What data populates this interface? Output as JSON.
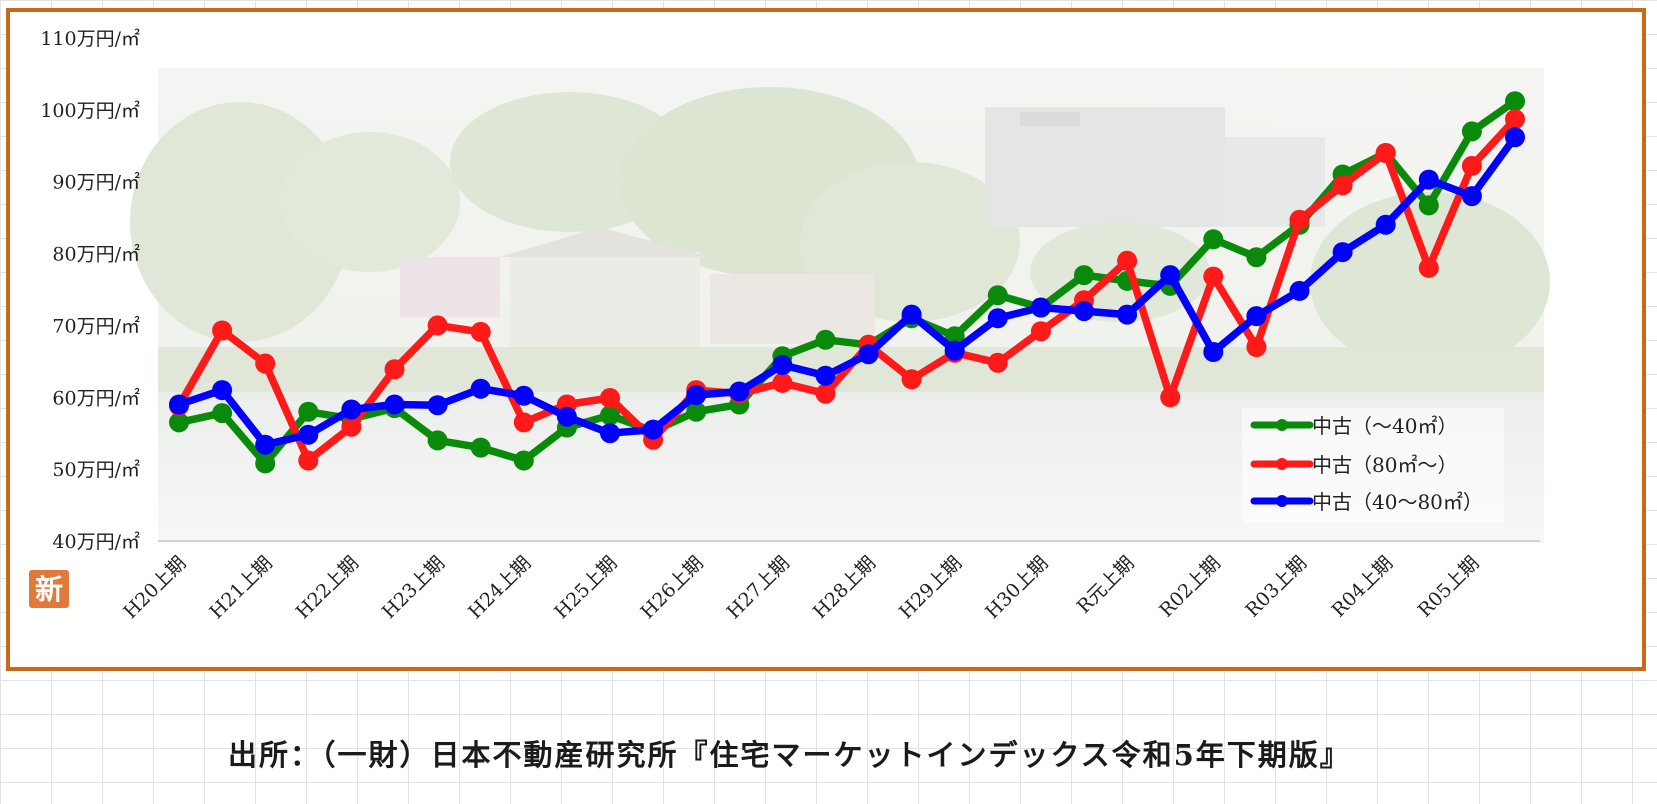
{
  "chart_data": {
    "type": "line",
    "title": "",
    "xlabel": "",
    "ylabel": "",
    "y_unit_suffix": "万円/㎡",
    "ylim": [
      40,
      110
    ],
    "yticks": [
      40,
      50,
      60,
      70,
      80,
      90,
      100,
      110
    ],
    "ytick_labels": [
      "40万円/㎡",
      "50万円/㎡",
      "60万円/㎡",
      "70万円/㎡",
      "80万円/㎡",
      "90万円/㎡",
      "100万円/㎡",
      "110万円/㎡"
    ],
    "grid": false,
    "legend_position": "bottom-right",
    "x_tick_labels": [
      "H20上期",
      "H21上期",
      "H22上期",
      "H23上期",
      "H24上期",
      "H25上期",
      "H26上期",
      "H27上期",
      "H28上期",
      "H29上期",
      "H30上期",
      "R元上期",
      "R02上期",
      "R03上期",
      "R04上期",
      "R05上期"
    ],
    "periods": 32,
    "series": [
      {
        "name": "中古（～40㎡）",
        "color": "#0a8a0a",
        "values": [
          56.5,
          57.8,
          50.8,
          58.0,
          57.0,
          58.5,
          54.0,
          53.0,
          51.2,
          55.8,
          57.5,
          55.3,
          58.0,
          59.0,
          65.7,
          68.0,
          67.3,
          71.0,
          68.5,
          74.2,
          72.5,
          77.0,
          76.2,
          75.5,
          82.0,
          79.5,
          84.0,
          91.0,
          94.0,
          86.7,
          97.0,
          101.2
        ]
      },
      {
        "name": "中古（80㎡～）",
        "color": "#ff1a1a",
        "values": [
          58.8,
          69.3,
          64.7,
          51.2,
          55.9,
          63.9,
          70.0,
          69.1,
          56.5,
          59.0,
          59.9,
          54.1,
          61.0,
          60.5,
          62.0,
          60.5,
          67.3,
          62.5,
          66.2,
          64.8,
          69.2,
          73.5,
          79.0,
          60.0,
          76.8,
          67.0,
          84.7,
          89.5,
          94.0,
          78.0,
          92.2,
          98.7
        ]
      },
      {
        "name": "中古（40～80㎡）",
        "color": "#0000ff",
        "values": [
          59.0,
          61.0,
          53.4,
          54.8,
          58.3,
          59.0,
          58.9,
          61.2,
          60.2,
          57.3,
          55.0,
          55.5,
          60.3,
          60.8,
          64.5,
          63.0,
          66.0,
          71.5,
          66.5,
          71.0,
          72.5,
          72.0,
          71.5,
          77.0,
          66.3,
          71.3,
          74.8,
          80.2,
          84.0,
          90.3,
          88.0,
          96.2
        ]
      }
    ]
  },
  "badge": {
    "text": "新",
    "color": "#e07a3c"
  },
  "frame_color": "#c8691c",
  "source": "出所：（一財）日本不動産研究所『住宅マーケットインデックス令和5年下期版』"
}
